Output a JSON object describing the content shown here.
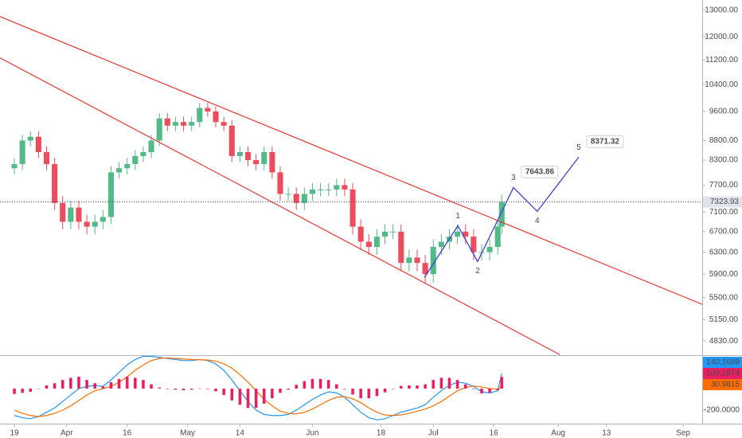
{
  "chart_data": [
    {
      "type": "candlestick",
      "x": [
        0,
        2,
        4,
        6,
        8,
        10,
        12,
        14,
        16,
        18,
        20,
        22,
        24,
        26,
        28,
        30,
        32,
        34,
        36,
        38,
        40,
        42,
        44,
        46,
        48,
        50,
        52,
        54,
        56,
        58,
        60,
        62,
        64,
        66,
        68,
        70,
        72,
        74,
        76,
        78,
        80,
        82,
        84,
        86,
        88,
        90,
        92,
        94,
        96,
        98,
        100,
        102,
        104,
        106,
        108,
        110,
        112,
        114,
        116,
        118,
        120,
        121
      ],
      "open": [
        8100,
        8200,
        8800,
        8900,
        8500,
        8200,
        7300,
        6900,
        7200,
        6900,
        6800,
        6900,
        7000,
        8000,
        8100,
        8200,
        8400,
        8500,
        8800,
        9400,
        9200,
        9300,
        9200,
        9300,
        9700,
        9600,
        9300,
        9200,
        8400,
        8500,
        8300,
        8200,
        8500,
        8000,
        7500,
        7500,
        7300,
        7500,
        7600,
        7600,
        7600,
        7700,
        7600,
        6800,
        6500,
        6400,
        6600,
        6700,
        6700,
        6100,
        6200,
        6100,
        5900,
        6400,
        6500,
        6600,
        6700,
        6600,
        6300,
        6300,
        6400,
        6800
      ],
      "high": [
        8350,
        8950,
        9050,
        9050,
        8650,
        8350,
        7450,
        7350,
        7350,
        7050,
        7050,
        7150,
        8150,
        8250,
        8350,
        8550,
        8650,
        8950,
        9550,
        9550,
        9450,
        9450,
        9450,
        9850,
        9850,
        9750,
        9450,
        9350,
        8650,
        8650,
        8450,
        8650,
        8650,
        8150,
        7650,
        7650,
        7650,
        7750,
        7750,
        7750,
        7850,
        7850,
        7750,
        6950,
        6650,
        6750,
        6850,
        6850,
        6850,
        6350,
        6350,
        6250,
        6550,
        6650,
        6750,
        6850,
        6850,
        6750,
        6450,
        6550,
        6950,
        7480
      ],
      "low": [
        7950,
        8050,
        8650,
        8350,
        8050,
        7150,
        6750,
        6750,
        6750,
        6650,
        6650,
        6750,
        6850,
        7850,
        7950,
        8050,
        8250,
        8350,
        8650,
        9050,
        9050,
        9050,
        9050,
        9150,
        9450,
        9150,
        9050,
        8250,
        8250,
        8150,
        8050,
        8050,
        7850,
        7350,
        7350,
        7150,
        7150,
        7350,
        7450,
        7450,
        7450,
        7450,
        6650,
        6350,
        6250,
        6250,
        6450,
        6550,
        5950,
        5950,
        5950,
        5750,
        5750,
        6250,
        6350,
        6450,
        6450,
        6150,
        6150,
        6150,
        6250,
        6650
      ],
      "close": [
        8200,
        8800,
        8900,
        8500,
        8200,
        7300,
        6900,
        7200,
        6900,
        6800,
        6900,
        7000,
        8000,
        8100,
        8200,
        8400,
        8500,
        8800,
        9400,
        9200,
        9300,
        9200,
        9300,
        9700,
        9600,
        9300,
        9200,
        8400,
        8500,
        8300,
        8200,
        8500,
        8000,
        7500,
        7500,
        7300,
        7500,
        7600,
        7600,
        7600,
        7700,
        7600,
        6800,
        6500,
        6400,
        6600,
        6700,
        6700,
        6100,
        6200,
        6100,
        5900,
        6400,
        6500,
        6600,
        6700,
        6600,
        6300,
        6300,
        6400,
        6800,
        7323.93
      ],
      "up_color": "#53b987",
      "down_color": "#eb4d5c",
      "xlim": [
        -3.56,
        170.75
      ],
      "xticks": [
        {
          "value": 0,
          "label": "19"
        },
        {
          "value": 13,
          "label": "Apr"
        },
        {
          "value": 28,
          "label": "16"
        },
        {
          "value": 43,
          "label": "May"
        },
        {
          "value": 56,
          "label": "14"
        },
        {
          "value": 74,
          "label": "Jun"
        },
        {
          "value": 91,
          "label": "18"
        },
        {
          "value": 104,
          "label": "Jul"
        },
        {
          "value": 119,
          "label": "16"
        },
        {
          "value": 135,
          "label": "Aug"
        },
        {
          "value": 147,
          "label": "13"
        },
        {
          "value": 166,
          "label": "Sep"
        }
      ],
      "ylim": [
        4640,
        13400
      ],
      "log_scale": true,
      "yticks": [
        {
          "value": 13000,
          "label": "13000.00"
        },
        {
          "value": 12000,
          "label": "12000.00"
        },
        {
          "value": 11200,
          "label": "11200.00"
        },
        {
          "value": 10400,
          "label": "10400.00"
        },
        {
          "value": 9600,
          "label": "9600.00"
        },
        {
          "value": 8800,
          "label": "8800.00"
        },
        {
          "value": 8300,
          "label": "8300.00"
        },
        {
          "value": 7700,
          "label": "7700.00"
        },
        {
          "value": 7100,
          "label": "7100.00"
        },
        {
          "value": 6700,
          "label": "6700.00"
        },
        {
          "value": 6300,
          "label": "6300.00"
        },
        {
          "value": 5900,
          "label": "5900.00"
        },
        {
          "value": 5500,
          "label": "5500.00"
        },
        {
          "value": 5150,
          "label": "5150.00"
        },
        {
          "value": 4830,
          "label": "4830.00"
        }
      ],
      "trend_lines": [
        {
          "x": [
            -3.56,
            170.75
          ],
          "values": [
            12750,
            5390
          ],
          "color": "#e53935"
        },
        {
          "x": [
            -3.56,
            135.4
          ],
          "values": [
            11270,
            4637
          ],
          "color": "#e53935"
        }
      ],
      "wave": {
        "color": "#3f3fd8",
        "points": [
          {
            "x": 101.8,
            "value": 5841
          },
          {
            "x": 110.1,
            "value": 6818,
            "label": "1"
          },
          {
            "x": 115.0,
            "value": 6127,
            "label": "2"
          },
          {
            "x": 123.9,
            "value": 7643.86,
            "label": "3",
            "boxed": true
          },
          {
            "x": 129.8,
            "value": 7118,
            "label": "4"
          },
          {
            "x": 140.1,
            "value": 8371.32,
            "label": "5",
            "boxed": true
          }
        ]
      }
    },
    {
      "type": "line",
      "ylim": [
        -311,
        303
      ],
      "yticks": [
        {
          "value": -200,
          "label": "-200.0000"
        }
      ],
      "series": [
        {
          "color": "#2196f3",
          "values": [
            -250,
            -270,
            -280,
            -260,
            -220,
            -180,
            -120,
            -60,
            0,
            20,
            30,
            20,
            80,
            150,
            220,
            270,
            300,
            300,
            290,
            280,
            270,
            260,
            260,
            270,
            260,
            230,
            170,
            80,
            -20,
            -120,
            -200,
            -240,
            -250,
            -250,
            -240,
            -200,
            -150,
            -100,
            -60,
            -30,
            -40,
            -80,
            -150,
            -220,
            -270,
            -290,
            -280,
            -250,
            -220,
            -200,
            -180,
            -150,
            -80,
            -20,
            30,
            60,
            50,
            20,
            -30,
            -40,
            -20,
            140.1689
          ]
        },
        {
          "color": "#ff6d00",
          "values": [
            -200,
            -230,
            -250,
            -260,
            -250,
            -230,
            -200,
            -160,
            -110,
            -60,
            -20,
            0,
            20,
            60,
            110,
            170,
            220,
            260,
            280,
            285,
            280,
            275,
            270,
            268,
            265,
            255,
            230,
            190,
            130,
            60,
            -20,
            -100,
            -160,
            -210,
            -230,
            -235,
            -220,
            -190,
            -150,
            -110,
            -80,
            -75,
            -95,
            -130,
            -180,
            -220,
            -245,
            -250,
            -245,
            -230,
            -210,
            -190,
            -160,
            -120,
            -70,
            -20,
            10,
            25,
            15,
            0,
            -5,
            30.9815
          ]
        },
        {
          "color": "#e91e63",
          "style": "histogram",
          "values": [
            -50,
            -40,
            -30,
            0,
            30,
            50,
            80,
            100,
            110,
            80,
            50,
            20,
            60,
            90,
            110,
            100,
            80,
            40,
            10,
            -5,
            -10,
            -15,
            -10,
            2,
            -5,
            -25,
            -60,
            -110,
            -150,
            -180,
            -180,
            -140,
            -90,
            -40,
            -10,
            35,
            70,
            90,
            90,
            80,
            40,
            -5,
            -55,
            -90,
            -90,
            -70,
            -35,
            0,
            25,
            30,
            30,
            40,
            80,
            100,
            100,
            80,
            40,
            -5,
            -45,
            -40,
            -15,
            109.1874
          ]
        }
      ]
    }
  ]
}
